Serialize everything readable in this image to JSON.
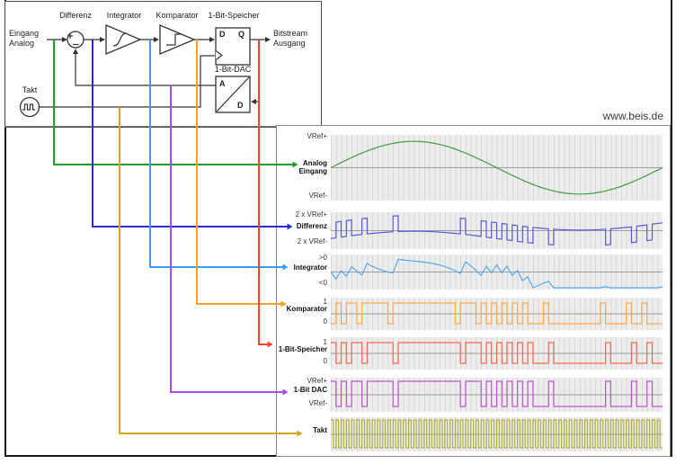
{
  "watermark": "www.beis.de",
  "block_diagram": {
    "input_label": "Eingang\nAnalog",
    "output_label": "Bitstream\nAusgang",
    "clock_label": "Takt",
    "sum_plus": "+",
    "sum_minus": "_",
    "blocks": {
      "differenz": "Differenz",
      "integrator": "Integrator",
      "komparator": "Komparator",
      "speicher": "1-Bit-Speicher",
      "dac": "1-Bit-DAC"
    },
    "ff_pins": {
      "d": "D",
      "q": "Q"
    },
    "dac_pins": {
      "analog": "A",
      "digital": "D"
    }
  },
  "colors": {
    "wire": "#333333",
    "frame": "#1a1a1a",
    "box": "#4d4d4d",
    "grid_bg": "#ededed",
    "grid_line": "#d8d8d8",
    "grid_mid": "#9c9c9c",
    "analog_green": "#2e9e34",
    "differenz_blue": "#2c2cd2",
    "integrator_cyan": "#3da2f7",
    "komparator_orange": "#ff9f1f",
    "speicher_red": "#fb4524",
    "dac_purple": "#a94df0",
    "takt_amber": "#d9a421",
    "takt_olive": "#abab44"
  },
  "chart_data": {
    "type": "line",
    "title": "",
    "clock_cycles": 64,
    "input": {
      "shape": "sine",
      "amplitude_vref": 0.93,
      "periods": 1
    },
    "modulator": {
      "integrator_gain": 0.55,
      "bitstream": "1010110111110111111111111011101010101010001000000000010000100100"
    },
    "rows": [
      {
        "id": "analog",
        "name": "Analog\nEingang",
        "top_label": "VRef+",
        "bottom_label": "VRef-",
        "signal": "analog",
        "trace_color": "#3f9e3f",
        "arrow_color": "#1fa02b"
      },
      {
        "id": "differenz",
        "name": "Differenz",
        "top_label": "2 x VRef+",
        "bottom_label": "2 x VRef-",
        "signal": "differenz",
        "trace_color": "#5a5ae4",
        "arrow_color": "#2c2cd2"
      },
      {
        "id": "integrator",
        "name": "Integrator",
        "top_label": ">0",
        "bottom_label": "<0",
        "signal": "integrator",
        "trace_color": "#55aaf5",
        "arrow_color": "#33a0fc"
      },
      {
        "id": "komparator",
        "name": "Komparator",
        "top_label": "1",
        "bottom_label": "0",
        "signal": "komparator",
        "trace_color": "#ffac49",
        "arrow_color": "#ff9f1f"
      },
      {
        "id": "speicher",
        "name": "1-Bit-Speicher",
        "top_label": "1",
        "bottom_label": "0",
        "signal": "speicher",
        "trace_color": "#fa6753",
        "arrow_color": "#fb4524"
      },
      {
        "id": "dac",
        "name": "1-Bit DAC",
        "top_label": "VRef+",
        "bottom_label": "VRef-",
        "signal": "dac",
        "trace_color": "#bb57cc",
        "arrow_color": "#a94df0"
      },
      {
        "id": "takt",
        "name": "Takt",
        "top_label": "",
        "bottom_label": "",
        "signal": "takt",
        "trace_color": "#b0b046",
        "arrow_color": "#d9a421"
      }
    ]
  }
}
